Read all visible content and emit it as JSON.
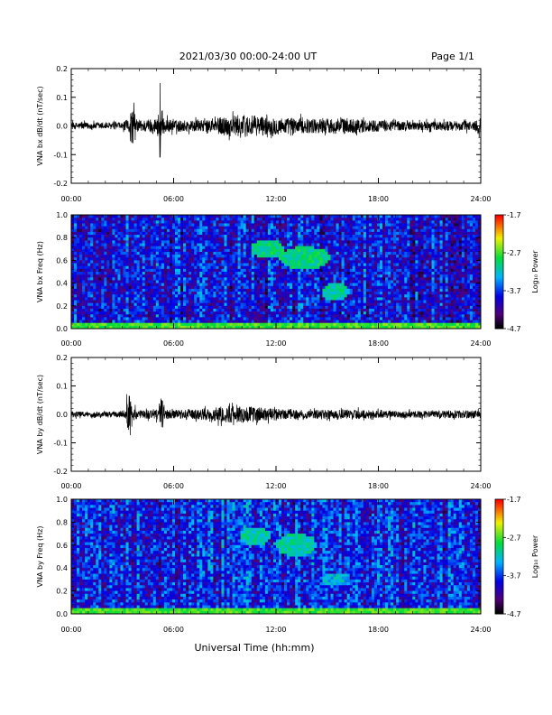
{
  "header": {
    "date_range": "2021/03/30  00:00-24:00 UT",
    "page": "Page 1/1"
  },
  "x_axis": {
    "label": "Universal Time (hh:mm)",
    "ticks": [
      "00:00",
      "06:00",
      "12:00",
      "18:00",
      "24:00"
    ]
  },
  "colorbar": {
    "label": "Log₁₀ Power",
    "ticks": [
      "-1.7",
      "-2.7",
      "-3.7",
      "-4.7"
    ]
  },
  "chart_data": [
    {
      "type": "line",
      "ylabel": "VNA bx dB/dt (nT/sec)",
      "xlim": [
        0,
        24
      ],
      "ylim": [
        -0.2,
        0.2
      ],
      "yticks": [
        "0.2",
        "0.1",
        "0.0",
        "-0.1",
        "-0.2"
      ],
      "xticks": [
        "00:00",
        "06:00",
        "12:00",
        "18:00",
        "24:00"
      ],
      "noise_profile": [
        [
          0,
          0.012
        ],
        [
          3.0,
          0.012
        ],
        [
          3.5,
          0.03
        ],
        [
          4.0,
          0.02
        ],
        [
          5.2,
          0.03
        ],
        [
          6.0,
          0.02
        ],
        [
          8.0,
          0.02
        ],
        [
          9.0,
          0.035
        ],
        [
          10.0,
          0.04
        ],
        [
          11.0,
          0.035
        ],
        [
          12.0,
          0.03
        ],
        [
          14.0,
          0.025
        ],
        [
          16.0,
          0.028
        ],
        [
          18.0,
          0.02
        ],
        [
          20.0,
          0.015
        ],
        [
          23.5,
          0.018
        ],
        [
          24,
          0.03
        ]
      ],
      "spikes": [
        {
          "t": 5.2,
          "max": 0.15,
          "min": -0.11
        },
        {
          "t": 3.6,
          "max": 0.05,
          "min": -0.06
        }
      ]
    },
    {
      "type": "heatmap",
      "ylabel": "VNA bx Freq (Hz)",
      "xlim": [
        0,
        24
      ],
      "ylim": [
        0.0,
        1.0
      ],
      "yticks": [
        "1.0",
        "0.8",
        "0.6",
        "0.4",
        "0.2",
        "0.0"
      ],
      "xticks": [
        "00:00",
        "06:00",
        "12:00",
        "18:00",
        "24:00"
      ],
      "clim": [
        -4.7,
        -1.7
      ],
      "base_power": -3.9,
      "low_freq_band": {
        "fmax": 0.05,
        "power": -2.7
      },
      "patches": [
        {
          "t": 11.5,
          "f": 0.7,
          "rt": 1.0,
          "rf": 0.08,
          "power": -3.0
        },
        {
          "t": 13.7,
          "f": 0.62,
          "rt": 1.5,
          "rf": 0.1,
          "power": -3.0
        },
        {
          "t": 15.5,
          "f": 0.32,
          "rt": 0.8,
          "rf": 0.08,
          "power": -3.1
        }
      ]
    },
    {
      "type": "line",
      "ylabel": "VNA by dB/dt (nT/sec)",
      "xlim": [
        0,
        24
      ],
      "ylim": [
        -0.2,
        0.2
      ],
      "yticks": [
        "0.2",
        "0.1",
        "0.0",
        "-0.1",
        "-0.2"
      ],
      "xticks": [
        "00:00",
        "06:00",
        "12:00",
        "18:00",
        "24:00"
      ],
      "noise_profile": [
        [
          0,
          0.01
        ],
        [
          3.0,
          0.01
        ],
        [
          3.4,
          0.03
        ],
        [
          4.0,
          0.015
        ],
        [
          5.2,
          0.02
        ],
        [
          6.0,
          0.015
        ],
        [
          8.0,
          0.02
        ],
        [
          9.0,
          0.03
        ],
        [
          10.0,
          0.03
        ],
        [
          11.0,
          0.025
        ],
        [
          12.0,
          0.02
        ],
        [
          14.0,
          0.015
        ],
        [
          16.0,
          0.018
        ],
        [
          18.0,
          0.013
        ],
        [
          20.0,
          0.012
        ],
        [
          24,
          0.015
        ]
      ],
      "spikes": [
        {
          "t": 3.4,
          "max": 0.065,
          "min": -0.04
        },
        {
          "t": 5.3,
          "max": 0.05,
          "min": -0.045
        }
      ]
    },
    {
      "type": "heatmap",
      "ylabel": "VNA by Freq (Hz)",
      "xlim": [
        0,
        24
      ],
      "ylim": [
        0.0,
        1.0
      ],
      "yticks": [
        "1.0",
        "0.8",
        "0.6",
        "0.4",
        "0.2",
        "0.0"
      ],
      "xticks": [
        "00:00",
        "06:00",
        "12:00",
        "18:00",
        "24:00"
      ],
      "clim": [
        -4.7,
        -1.7
      ],
      "base_power": -3.8,
      "low_freq_band": {
        "fmax": 0.06,
        "power": -2.7
      },
      "patches": [
        {
          "t": 10.8,
          "f": 0.68,
          "rt": 0.9,
          "rf": 0.08,
          "power": -3.1
        },
        {
          "t": 13.2,
          "f": 0.6,
          "rt": 1.2,
          "rf": 0.1,
          "power": -3.1
        },
        {
          "t": 15.5,
          "f": 0.3,
          "rt": 0.8,
          "rf": 0.06,
          "power": -3.3
        }
      ]
    }
  ]
}
